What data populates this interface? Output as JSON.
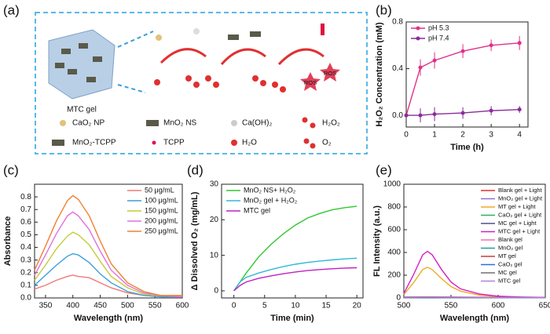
{
  "diagram": {
    "panel": "(a)",
    "gel_label": "MTC gel",
    "legend": [
      "CaO₂ NP",
      "MnO₂ NS",
      "Ca(OH)₂",
      "H₂O₂",
      "MnO₂-TCPP",
      "TCPP",
      "H₂O",
      "O₂"
    ],
    "ros": [
      "ROS",
      "ROS"
    ]
  },
  "chart_data": [
    {
      "type": "line",
      "panel": "(b)",
      "xlabel": "Time (h)",
      "ylabel": "H₂O₂ Concentration (mM)",
      "x": [
        0,
        0.5,
        1,
        2,
        3,
        4
      ],
      "xlim": [
        0,
        4.3
      ],
      "xticks": [
        0,
        1,
        2,
        3,
        4
      ],
      "ylim": [
        -0.1,
        0.8
      ],
      "yticks": [
        {
          "value": 0,
          "label": "0.0"
        },
        0.4,
        0.8
      ],
      "legend": "upper left",
      "markers": true,
      "series": [
        {
          "name": "pH 5.3",
          "color": "#e0308a",
          "values": [
            0,
            0.41,
            0.47,
            0.55,
            0.6,
            0.62
          ],
          "errors": [
            0,
            0.07,
            0.07,
            0.06,
            0.05,
            0.06
          ]
        },
        {
          "name": "pH 7.4",
          "color": "#8a2c9a",
          "values": [
            0,
            0.0,
            0.01,
            0.02,
            0.04,
            0.05
          ],
          "errors": [
            0,
            0.06,
            0.06,
            0.05,
            0.04,
            0.03
          ]
        }
      ]
    },
    {
      "type": "line",
      "panel": "(c)",
      "xlabel": "Wavelength (nm)",
      "ylabel": "Absorbance",
      "x": [
        330,
        350,
        370,
        390,
        400,
        410,
        430,
        450,
        470,
        500,
        530,
        560,
        600
      ],
      "xlim": [
        330,
        600
      ],
      "xticks": [
        350,
        400,
        450,
        500,
        550,
        600
      ],
      "ylim": [
        0,
        0.9
      ],
      "yticks": [
        {
          "value": 0,
          "label": "0.0"
        },
        0.1,
        0.2,
        0.3,
        0.4,
        0.5,
        0.6,
        0.7,
        0.8
      ],
      "legend": "upper right",
      "markers": false,
      "series": [
        {
          "name": "50 μg/mL",
          "color": "#f07878",
          "values": [
            0.07,
            0.1,
            0.14,
            0.17,
            0.18,
            0.17,
            0.16,
            0.12,
            0.08,
            0.04,
            0.02,
            0.01,
            0.01
          ]
        },
        {
          "name": "100 μg/mL",
          "color": "#3a9ee0",
          "values": [
            0.1,
            0.18,
            0.26,
            0.33,
            0.35,
            0.34,
            0.28,
            0.19,
            0.12,
            0.05,
            0.02,
            0.01,
            0.01
          ]
        },
        {
          "name": "150 μg/mL",
          "color": "#c4cc38",
          "values": [
            0.14,
            0.26,
            0.39,
            0.49,
            0.52,
            0.5,
            0.42,
            0.29,
            0.17,
            0.08,
            0.03,
            0.02,
            0.01
          ]
        },
        {
          "name": "200 μg/mL",
          "color": "#e070e0",
          "values": [
            0.18,
            0.34,
            0.51,
            0.65,
            0.68,
            0.65,
            0.54,
            0.37,
            0.22,
            0.1,
            0.04,
            0.02,
            0.01
          ]
        },
        {
          "name": "250 μg/mL",
          "color": "#f08030",
          "values": [
            0.22,
            0.41,
            0.61,
            0.77,
            0.81,
            0.78,
            0.65,
            0.45,
            0.27,
            0.12,
            0.05,
            0.02,
            0.02
          ]
        }
      ]
    },
    {
      "type": "line",
      "panel": "(d)",
      "xlabel": "Time (min)",
      "ylabel": "Δ Dissolved O₂ (mg/mL)",
      "x": [
        0,
        1,
        2,
        4,
        6,
        8,
        10,
        12,
        14,
        16,
        18,
        20
      ],
      "xlim": [
        -2,
        21
      ],
      "xticks": [
        0,
        5,
        10,
        15,
        20
      ],
      "ylim": [
        -2,
        30
      ],
      "yticks": [
        0,
        10,
        20,
        30
      ],
      "legend": "upper left",
      "markers": false,
      "series": [
        {
          "name": "MnO₂ NS+ H₂O₂",
          "color": "#2ec82e",
          "values": [
            0,
            2.5,
            5,
            9.5,
            13,
            16,
            18.5,
            20.5,
            21.8,
            22.8,
            23.4,
            23.8
          ]
        },
        {
          "name": "MnO₂ gel + H₂O₂",
          "color": "#30b8d8",
          "values": [
            0,
            2.5,
            3.8,
            5,
            6,
            6.8,
            7.5,
            8,
            8.4,
            8.7,
            9,
            9.2
          ]
        },
        {
          "name": "MTC gel",
          "color": "#c020c0",
          "values": [
            0,
            1.5,
            2.5,
            3.5,
            4.2,
            4.8,
            5.3,
            5.7,
            6,
            6.2,
            6.4,
            6.5
          ]
        }
      ]
    },
    {
      "type": "line",
      "panel": "(e)",
      "xlabel": "Wavelength (nm)",
      "ylabel": "FL Intensity (a.u.)",
      "x": [
        500,
        510,
        520,
        525,
        530,
        540,
        550,
        560,
        580,
        600,
        625,
        650
      ],
      "xlim": [
        500,
        650
      ],
      "xticks": [
        500,
        550,
        600,
        650
      ],
      "ylim": [
        0,
        1000
      ],
      "yticks": [
        0,
        200,
        400,
        600,
        800,
        1000
      ],
      "legend": "upper right",
      "markers": false,
      "series": [
        {
          "name": "Blank gel + Light",
          "color": "#e03030",
          "values": [
            5,
            5,
            6,
            6,
            6,
            5,
            5,
            4,
            4,
            3,
            3,
            3
          ]
        },
        {
          "name": "MnO₂ gel + Light",
          "color": "#9070d0",
          "values": [
            6,
            6,
            7,
            7,
            7,
            6,
            6,
            5,
            4,
            4,
            3,
            3
          ]
        },
        {
          "name": "MT gel + Light",
          "color": "#f0a828",
          "values": [
            30,
            130,
            250,
            270,
            250,
            170,
            100,
            60,
            25,
            10,
            5,
            3
          ]
        },
        {
          "name": "CaO₂ gel + Light",
          "color": "#30b060",
          "values": [
            4,
            4,
            5,
            5,
            5,
            5,
            4,
            4,
            3,
            3,
            3,
            2
          ]
        },
        {
          "name": "MC gel + Light",
          "color": "#505090",
          "values": [
            5,
            5,
            6,
            6,
            6,
            5,
            5,
            4,
            4,
            3,
            3,
            3
          ]
        },
        {
          "name": "MTC gel + Light",
          "color": "#d020c8",
          "values": [
            40,
            200,
            380,
            410,
            380,
            250,
            140,
            80,
            35,
            15,
            8,
            5
          ]
        },
        {
          "name": "Blank gel",
          "color": "#f070b0",
          "values": [
            3,
            3,
            4,
            4,
            4,
            4,
            3,
            3,
            3,
            2,
            2,
            2
          ]
        },
        {
          "name": "MnO₂ gel",
          "color": "#20a0a0",
          "values": [
            4,
            4,
            4,
            4,
            4,
            4,
            3,
            3,
            3,
            2,
            2,
            2
          ]
        },
        {
          "name": "MT gel",
          "color": "#c04040",
          "values": [
            8,
            9,
            10,
            10,
            10,
            9,
            8,
            7,
            6,
            5,
            4,
            4
          ]
        },
        {
          "name": "CaO₂ gel",
          "color": "#3070d0",
          "values": [
            3,
            3,
            3,
            3,
            3,
            3,
            3,
            3,
            2,
            2,
            2,
            2
          ]
        },
        {
          "name": "MC gel",
          "color": "#707070",
          "values": [
            4,
            4,
            5,
            5,
            5,
            4,
            4,
            4,
            3,
            3,
            3,
            2
          ]
        },
        {
          "name": "MTC gel",
          "color": "#b080d8",
          "values": [
            6,
            7,
            8,
            8,
            8,
            7,
            6,
            6,
            5,
            4,
            4,
            3
          ]
        }
      ]
    }
  ]
}
